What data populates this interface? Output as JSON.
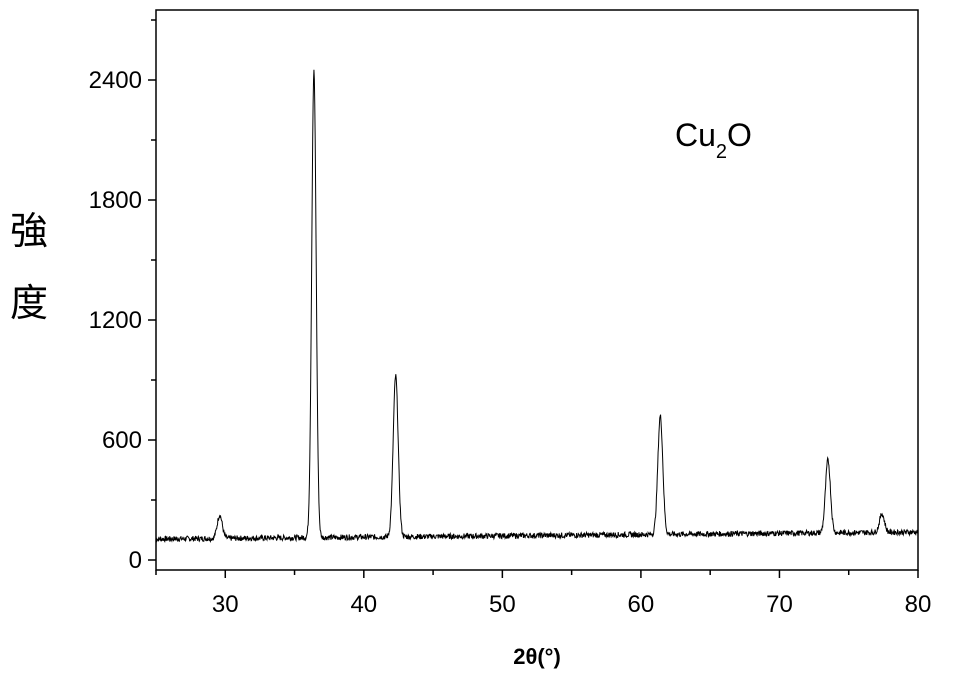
{
  "chart_data": {
    "type": "line",
    "title": "",
    "xlabel": "2θ(°)",
    "ylabel_chars": [
      "強",
      "度"
    ],
    "annotation": {
      "main": "Cu",
      "sub": "2",
      "tail": "O"
    },
    "xlim": [
      25,
      80
    ],
    "ylim": [
      -50,
      2750
    ],
    "x_ticks": [
      30,
      40,
      50,
      60,
      70,
      80
    ],
    "y_ticks": [
      0,
      600,
      1200,
      1800,
      2400
    ],
    "grid": false,
    "legend": "none",
    "line_color": "#000000",
    "baseline": {
      "start": 105,
      "end": 140
    },
    "peaks": [
      {
        "x": 29.6,
        "y": 225
      },
      {
        "x": 36.4,
        "y": 2440
      },
      {
        "x": 42.3,
        "y": 920
      },
      {
        "x": 61.4,
        "y": 720
      },
      {
        "x": 73.5,
        "y": 500
      },
      {
        "x": 77.4,
        "y": 230
      }
    ]
  }
}
